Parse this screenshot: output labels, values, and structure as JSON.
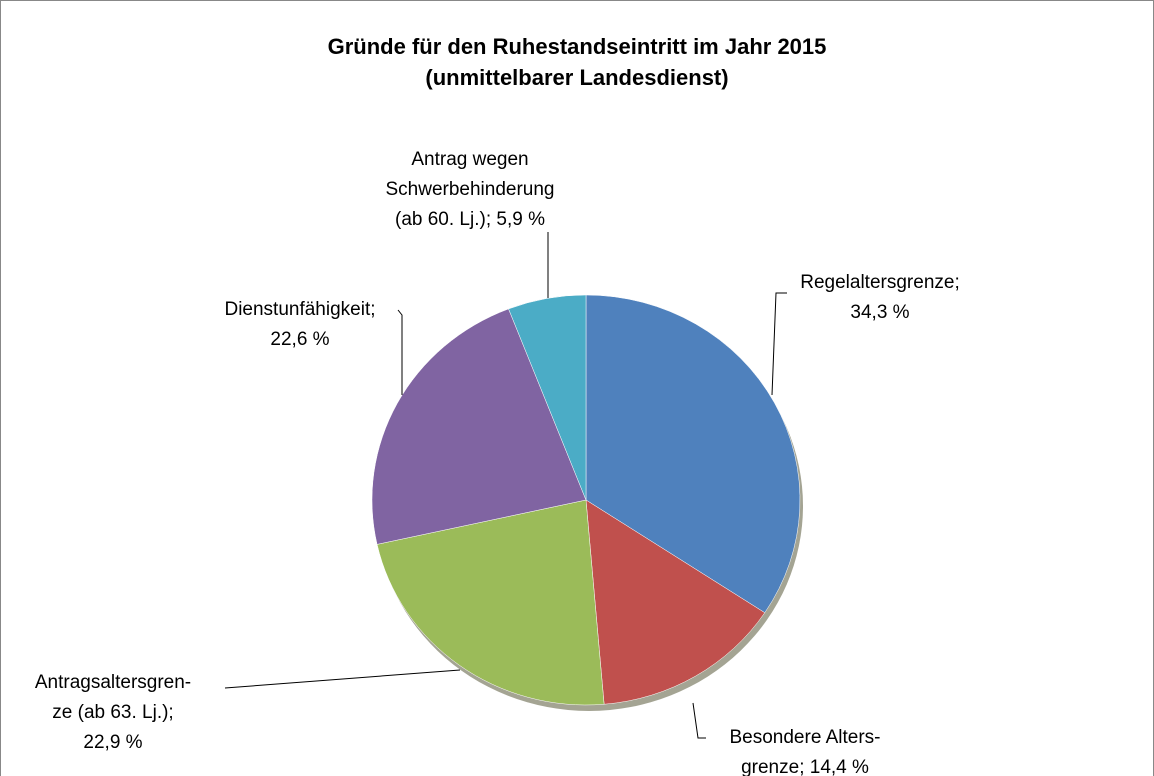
{
  "chart_data": {
    "type": "pie",
    "title": "Gründe für den Ruhestandseintritt im Jahr 2015\n(unmittelbarer Landesdienst)",
    "categories": [
      "Regelaltersgrenze;",
      "Besondere Alters-\ngrenze;",
      "Antragsaltersgren-\nze (ab 63. Lj.);",
      "Dienstunfähigkeit;",
      "Antrag wegen\nSchwerbehinderung\n(ab 60. Lj.);"
    ],
    "values": [
      34.3,
      14.4,
      22.9,
      22.6,
      5.9
    ],
    "value_labels": [
      "34,3 %",
      "14,4 %",
      "22,9 %",
      "22,6 %",
      "5,9 %"
    ],
    "colors": [
      "#4f81bd",
      "#c0504d",
      "#9bbb59",
      "#8064a2",
      "#4bacc6"
    ]
  }
}
